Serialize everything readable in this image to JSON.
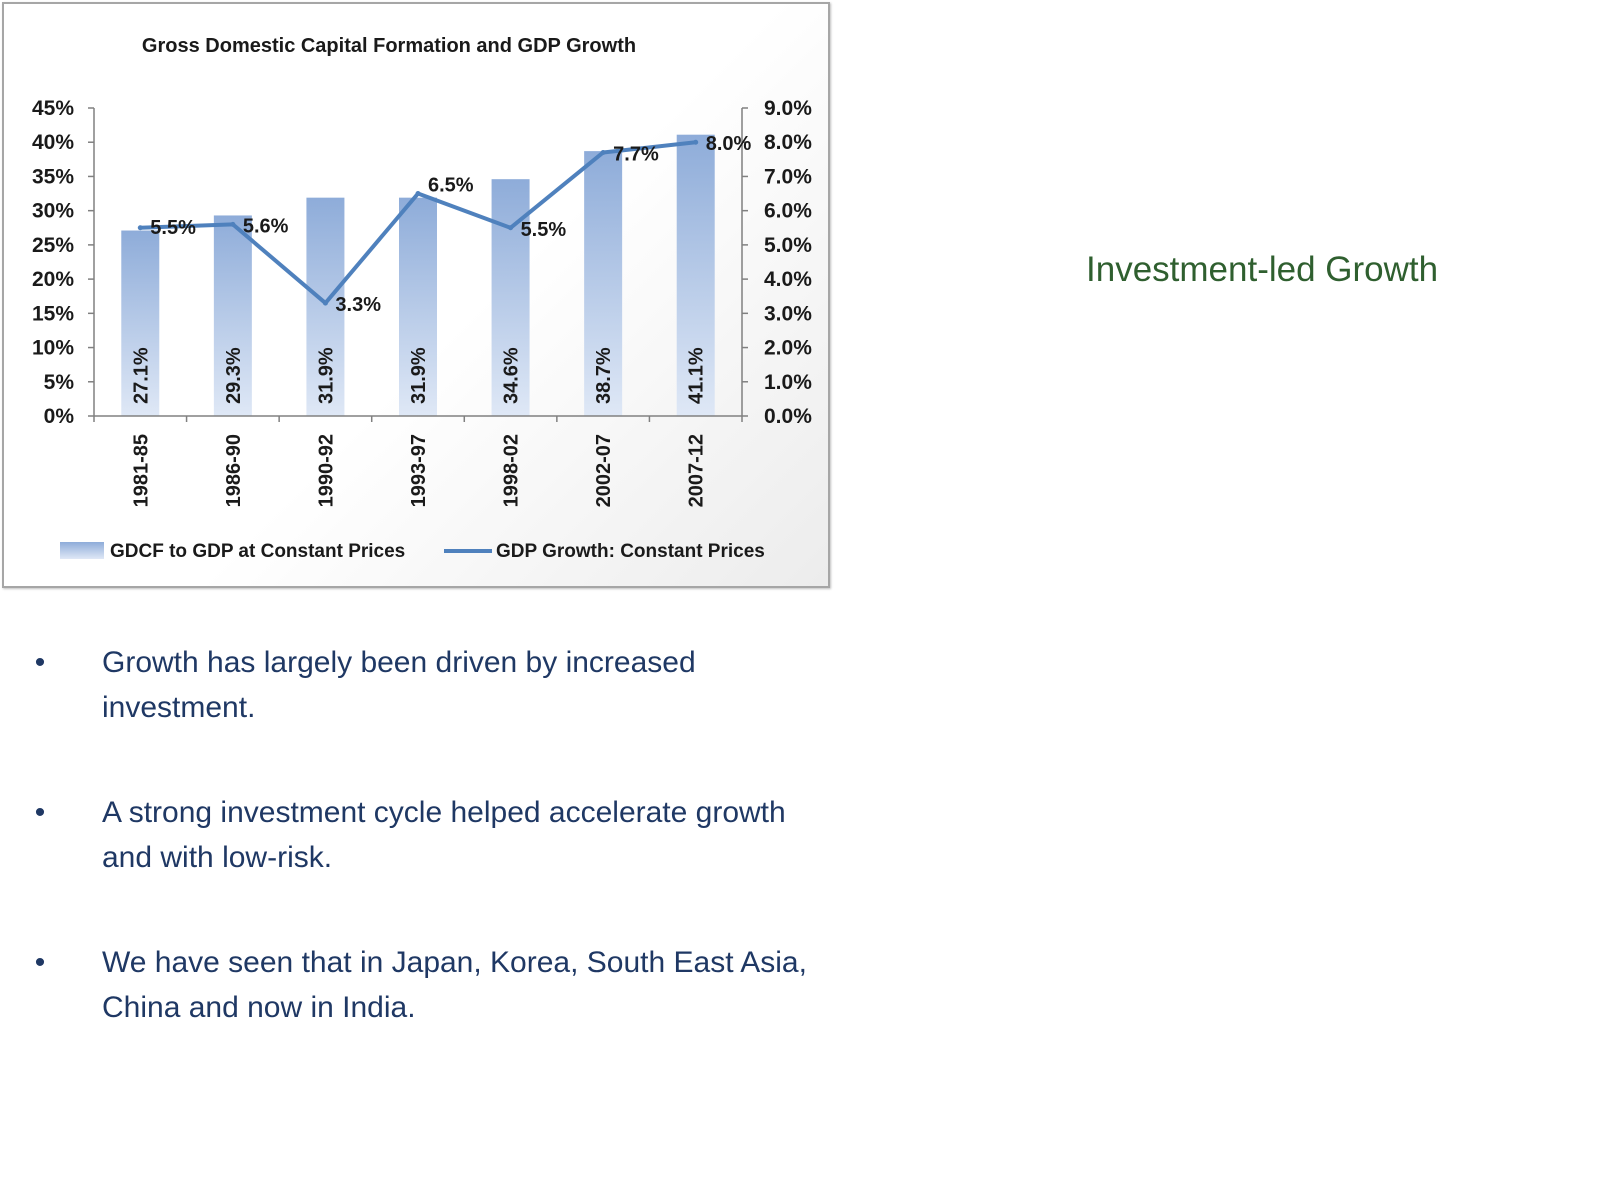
{
  "side_title": "Investment-led Growth",
  "bullets": [
    {
      "dot": "•",
      "text": "Growth has largely been driven by increased investment."
    },
    {
      "dot": "•",
      "text": "A strong investment cycle helped accelerate growth and with low-risk."
    },
    {
      "dot": "•",
      "text": "We have seen that in Japan, Korea, South East Asia, China and now in India."
    }
  ],
  "colors": {
    "bar_top": "#8eacd9",
    "bar_bottom": "#dfe8f6",
    "line": "#4f81bd",
    "side_title": "#2f5f2f",
    "bullet_text": "#1f3864"
  },
  "chart_data": {
    "type": "bar",
    "title": "Gross Domestic Capital Formation and  GDP  Growth",
    "categories": [
      "1981-85",
      "1986-90",
      "1990-92",
      "1993-97",
      "1998-02",
      "2002-07",
      "2007-12"
    ],
    "series": [
      {
        "name": "GDCF to GDP at Constant Prices",
        "type": "bar",
        "axis": "left",
        "values": [
          27.1,
          29.3,
          31.9,
          31.9,
          34.6,
          38.7,
          41.1
        ],
        "labels": [
          "27.1%",
          "29.3%",
          "31.9%",
          "31.9%",
          "34.6%",
          "38.7%",
          "41.1%"
        ]
      },
      {
        "name": "GDP Growth: Constant Prices",
        "type": "line",
        "axis": "right",
        "values": [
          5.5,
          5.6,
          3.3,
          6.5,
          5.5,
          7.7,
          8.0
        ],
        "labels": [
          "5.5%",
          "5.6%",
          "3.3%",
          "6.5%",
          "5.5%",
          "7.7%",
          "8.0%"
        ]
      }
    ],
    "y_left": {
      "ylim": [
        0,
        45
      ],
      "ticks": [
        "0%",
        "5%",
        "10%",
        "15%",
        "20%",
        "25%",
        "30%",
        "35%",
        "40%",
        "45%"
      ]
    },
    "y_right": {
      "ylim": [
        0,
        9
      ],
      "ticks": [
        "0.0%",
        "1.0%",
        "2.0%",
        "3.0%",
        "4.0%",
        "5.0%",
        "6.0%",
        "7.0%",
        "8.0%",
        "9.0%"
      ]
    },
    "grid": false,
    "legend_position": "bottom"
  }
}
